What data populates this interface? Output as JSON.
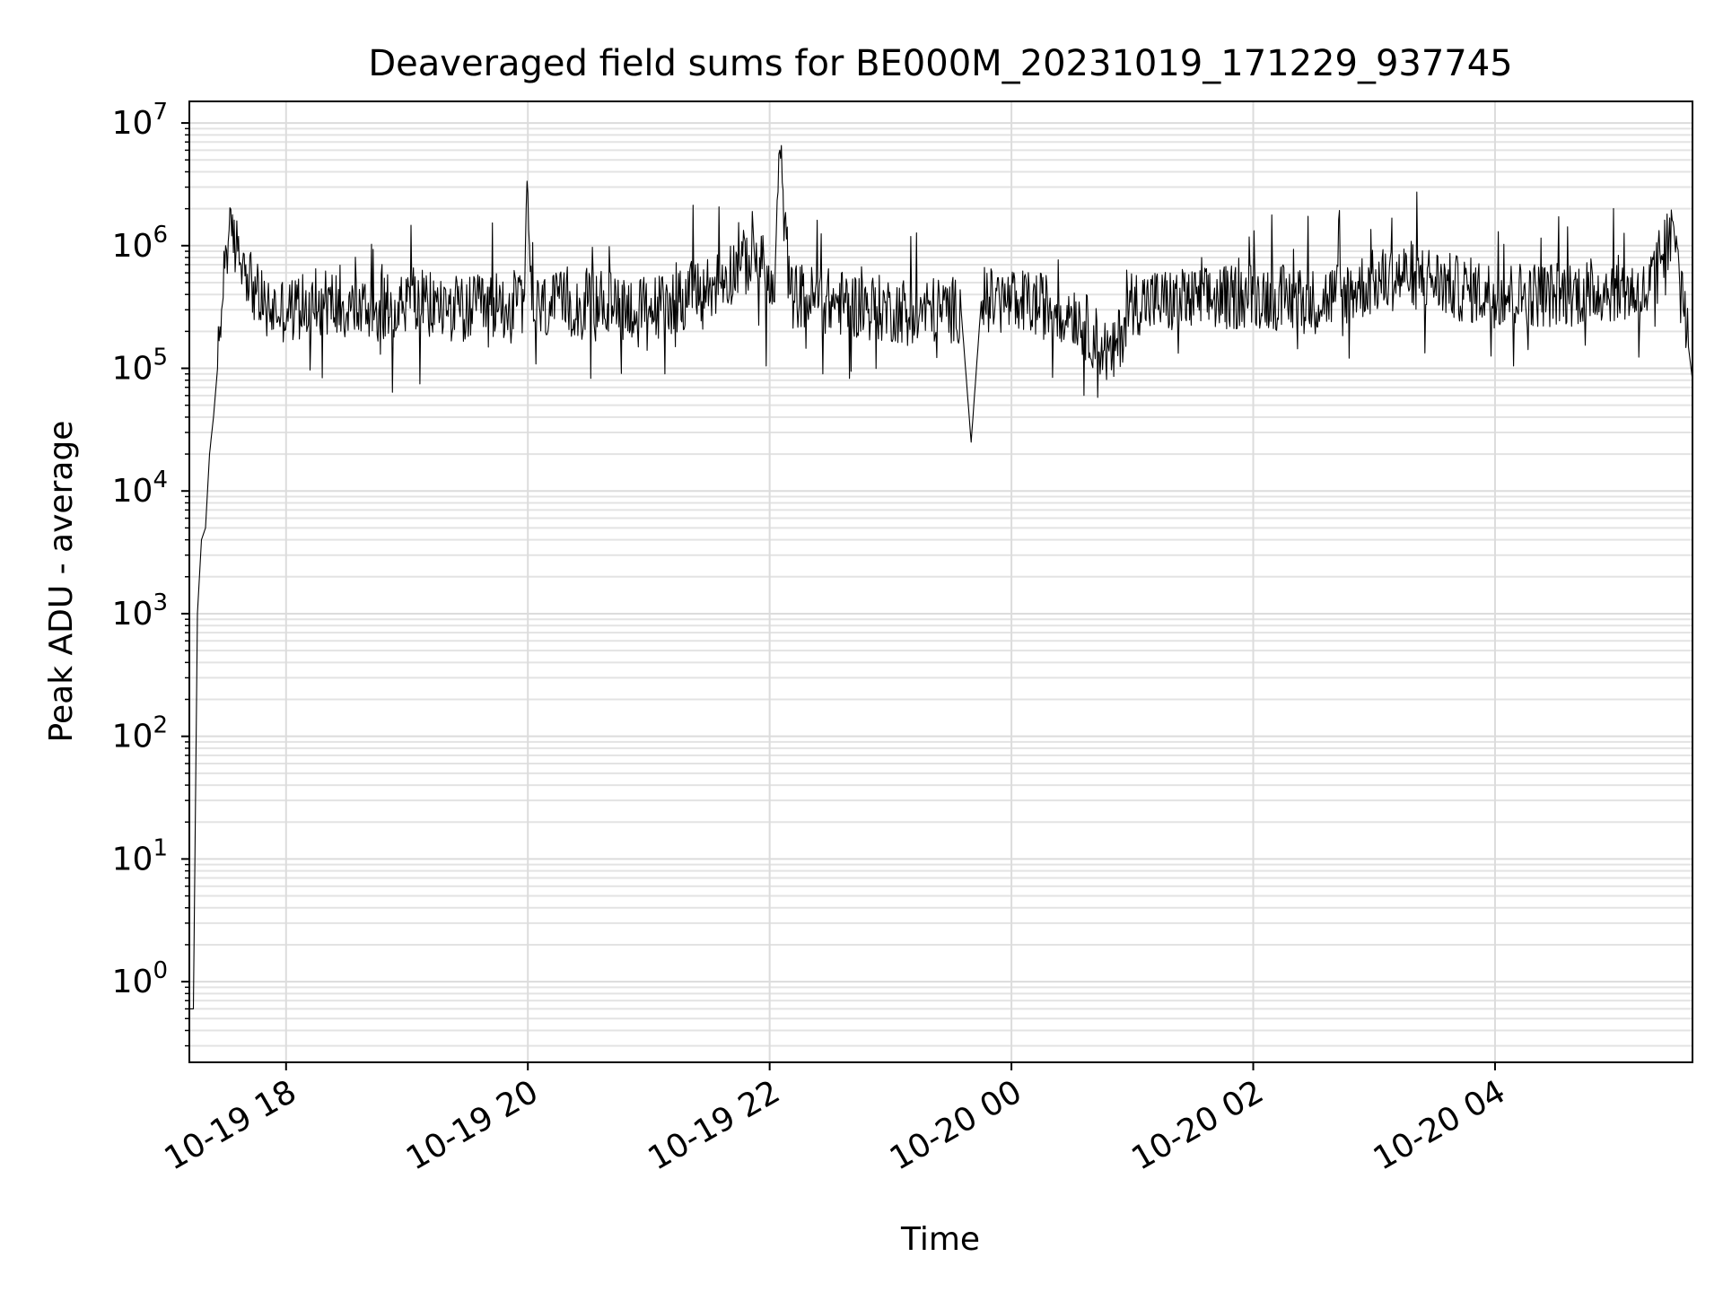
{
  "chart_data": {
    "type": "line",
    "title": "Deaveraged field sums for BE000M_20231019_171229_937745",
    "xlabel": "Time",
    "ylabel": "Peak ADU - average",
    "yscale": "log",
    "grid": true,
    "xlim": [
      "2023-10-19 17:12",
      "2023-10-20 05:38"
    ],
    "ylim": [
      0.22,
      15000000
    ],
    "xticks": [
      {
        "value": "2023-10-19 18:00",
        "label": "10-19 18"
      },
      {
        "value": "2023-10-19 20:00",
        "label": "10-19 20"
      },
      {
        "value": "2023-10-19 22:00",
        "label": "10-19 22"
      },
      {
        "value": "2023-10-20 00:00",
        "label": "10-20 00"
      },
      {
        "value": "2023-10-20 02:00",
        "label": "10-20 02"
      },
      {
        "value": "2023-10-20 04:00",
        "label": "10-20 04"
      }
    ],
    "yticks": [
      {
        "value": 1,
        "base": "10",
        "exp": "0"
      },
      {
        "value": 10,
        "base": "10",
        "exp": "1"
      },
      {
        "value": 100,
        "base": "10",
        "exp": "2"
      },
      {
        "value": 1000,
        "base": "10",
        "exp": "3"
      },
      {
        "value": 10000,
        "base": "10",
        "exp": "4"
      },
      {
        "value": 100000,
        "base": "10",
        "exp": "5"
      },
      {
        "value": 1000000,
        "base": "10",
        "exp": "6"
      },
      {
        "value": 10000000,
        "base": "10",
        "exp": "7"
      }
    ],
    "series": [
      {
        "color": "#000000",
        "x": [
          "2023-10-19 17:12",
          "2023-10-19 17:14",
          "2023-10-19 17:16",
          "2023-10-19 17:18",
          "2023-10-19 17:20",
          "2023-10-19 17:22",
          "2023-10-19 17:24",
          "2023-10-19 17:26",
          "2023-10-19 17:28",
          "2023-10-19 17:30",
          "2023-10-19 17:33",
          "2023-10-19 17:36",
          "2023-10-19 17:40",
          "2023-10-19 17:45",
          "2023-10-19 17:50",
          "2023-10-19 17:55",
          "2023-10-19 18:05",
          "2023-10-19 18:20",
          "2023-10-19 18:40",
          "2023-10-19 19:00",
          "2023-10-19 19:30",
          "2023-10-19 19:58",
          "2023-10-19 20:00",
          "2023-10-19 20:02",
          "2023-10-19 20:30",
          "2023-10-19 21:00",
          "2023-10-19 21:30",
          "2023-10-19 21:45",
          "2023-10-19 21:55",
          "2023-10-19 22:02",
          "2023-10-19 22:05",
          "2023-10-19 22:10",
          "2023-10-19 22:30",
          "2023-10-19 23:00",
          "2023-10-19 23:35",
          "2023-10-19 23:40",
          "2023-10-19 23:45",
          "2023-10-20 00:00",
          "2023-10-20 00:30",
          "2023-10-20 00:50",
          "2023-10-20 01:00",
          "2023-10-20 01:30",
          "2023-10-20 02:00",
          "2023-10-20 02:30",
          "2023-10-20 03:00",
          "2023-10-20 03:20",
          "2023-10-20 03:40",
          "2023-10-20 04:00",
          "2023-10-20 04:30",
          "2023-10-20 05:00",
          "2023-10-20 05:15",
          "2023-10-20 05:25",
          "2023-10-20 05:30",
          "2023-10-20 05:33",
          "2023-10-20 05:36",
          "2023-10-20 05:38"
        ],
        "y": [
          0.6,
          0.6,
          1000,
          4000,
          5000,
          20000,
          40000,
          100000,
          300000,
          1000000,
          1200000,
          900000,
          700000,
          400000,
          300000,
          300000,
          300000,
          350000,
          300000,
          350000,
          300000,
          350000,
          2700000,
          300000,
          350000,
          300000,
          450000,
          700000,
          800000,
          350000,
          6000000,
          400000,
          350000,
          300000,
          300000,
          25000,
          350000,
          350000,
          300000,
          120000,
          350000,
          350000,
          400000,
          350000,
          500000,
          600000,
          450000,
          400000,
          400000,
          450000,
          400000,
          1000000,
          1200000,
          600000,
          150000,
          80000
        ]
      }
    ]
  }
}
